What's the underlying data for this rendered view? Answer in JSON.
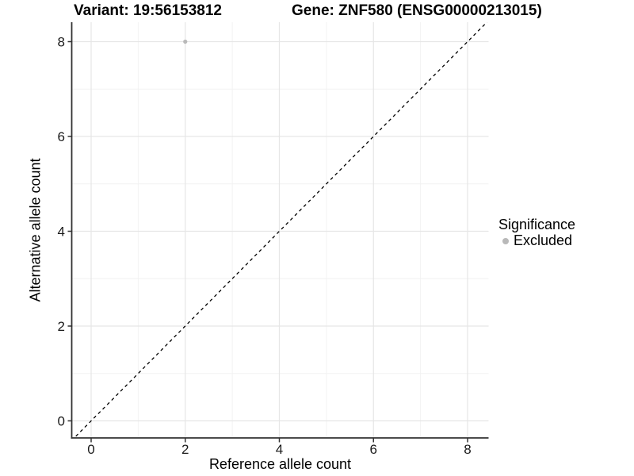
{
  "chart_data": {
    "type": "scatter",
    "title_left": "Variant: 19:56153812",
    "title_right": "Gene: ZNF580 (ENSG00000213015)",
    "xlabel": "Reference allele count",
    "ylabel": "Alternative allele count",
    "xlim": [
      -0.42,
      8.42
    ],
    "ylim": [
      -0.42,
      8.42
    ],
    "x_ticks": [
      0,
      2,
      4,
      6,
      8
    ],
    "y_ticks": [
      0,
      2,
      4,
      6,
      8
    ],
    "x_minor_ticks": [
      1,
      3,
      5,
      7
    ],
    "y_minor_ticks": [
      1,
      3,
      5,
      7
    ],
    "grid": "major and minor gridlines on white panel, no top/right border",
    "points": [
      {
        "x": 2,
        "y": 8,
        "significance": "Excluded"
      }
    ],
    "identity_line": {
      "style": "dashed",
      "color": "#000000",
      "from": [
        -0.42,
        -0.42
      ],
      "to": [
        8.42,
        8.42
      ]
    },
    "legend": {
      "title": "Significance",
      "position": "right",
      "items": [
        {
          "label": "Excluded",
          "color": "#b9b9b9"
        }
      ]
    }
  },
  "colors": {
    "background": "#ffffff",
    "axis_line": "#333333",
    "tick_label": "#1a1a1a",
    "grid_major": "#e6e6e6",
    "grid_minor": "#f2f2f2",
    "point": "#b9b9b9"
  }
}
